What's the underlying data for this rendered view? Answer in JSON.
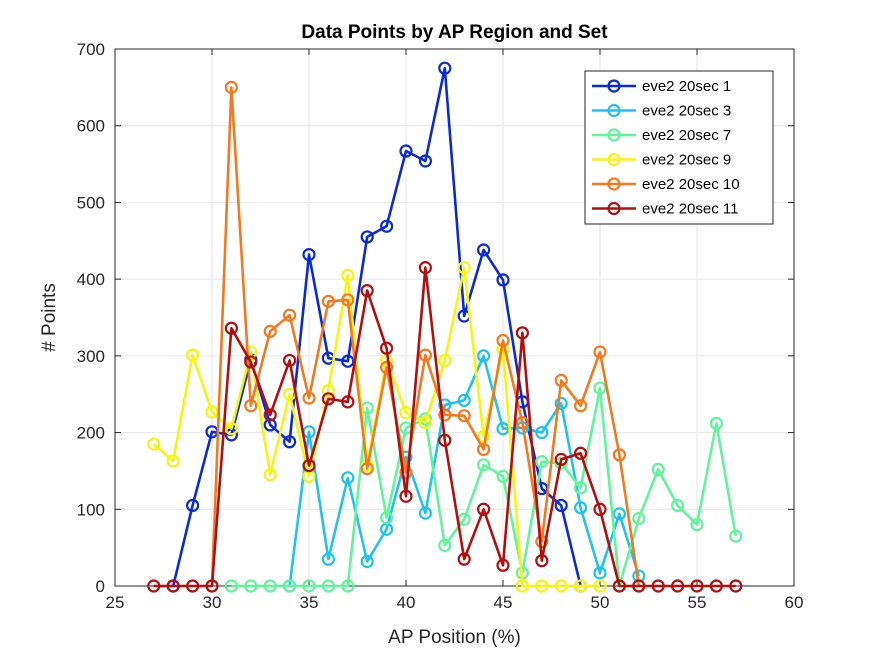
{
  "chart_data": {
    "type": "line",
    "title": "Data Points by AP Region and Set",
    "xlabel": "AP Position (%)",
    "ylabel": "# Points",
    "xlim": [
      25,
      60
    ],
    "ylim": [
      0,
      700
    ],
    "xticks": [
      25,
      30,
      35,
      40,
      45,
      50,
      55,
      60
    ],
    "yticks": [
      0,
      100,
      200,
      300,
      400,
      500,
      600,
      700
    ],
    "grid": true,
    "legend_position": "top-right",
    "marker": "circle",
    "series": [
      {
        "name": "eve2 20sec 1",
        "color": "#0a2bd4",
        "x": [
          28,
          29,
          30,
          31,
          32,
          33,
          34,
          35,
          36,
          37,
          38,
          39,
          40,
          41,
          42,
          43,
          44,
          45,
          46,
          47,
          48,
          49
        ],
        "y": [
          0,
          105,
          201,
          197,
          295,
          210,
          188,
          432,
          297,
          293,
          455,
          469,
          567,
          554,
          675,
          352,
          438,
          399,
          240,
          127,
          105,
          0
        ]
      },
      {
        "name": "eve2 20sec 3",
        "color": "#1ec3ef",
        "x": [
          34,
          35,
          36,
          37,
          38,
          39,
          40,
          41,
          42,
          43,
          44,
          45,
          46,
          47,
          48,
          49,
          50,
          51,
          52
        ],
        "y": [
          0,
          201,
          35,
          141,
          32,
          74,
          168,
          95,
          236,
          242,
          300,
          205,
          206,
          200,
          238,
          102,
          17,
          94,
          13
        ]
      },
      {
        "name": "eve2 20sec 7",
        "color": "#5ff598",
        "x": [
          31,
          32,
          33,
          34,
          35,
          36,
          37,
          38,
          39,
          40,
          41,
          42,
          43,
          44,
          45,
          46,
          47,
          48,
          49,
          50,
          51,
          52,
          53,
          54,
          55,
          56,
          57
        ],
        "y": [
          0,
          0,
          0,
          0,
          0,
          0,
          0,
          232,
          89,
          206,
          218,
          53,
          87,
          158,
          143,
          17,
          162,
          160,
          128,
          258,
          0,
          88,
          152,
          105,
          80,
          212,
          65
        ]
      },
      {
        "name": "eve2 20sec 9",
        "color": "#f5f511",
        "x": [
          27,
          28,
          29,
          30,
          31,
          32,
          33,
          34,
          35,
          36,
          37,
          38,
          39,
          40,
          41,
          42,
          43,
          44,
          45,
          46,
          47,
          48,
          49,
          50
        ],
        "y": [
          185,
          163,
          301,
          227,
          205,
          305,
          145,
          250,
          143,
          255,
          405,
          157,
          294,
          226,
          213,
          294,
          415,
          195,
          309,
          0,
          0,
          0,
          0,
          0
        ]
      },
      {
        "name": "eve2 20sec 10",
        "color": "#f5781e",
        "x": [
          30,
          31,
          32,
          33,
          34,
          35,
          36,
          37,
          38,
          39,
          40,
          41,
          42,
          43,
          44,
          45,
          46,
          47,
          48,
          49,
          50,
          51,
          52
        ],
        "y": [
          0,
          650,
          235,
          332,
          353,
          245,
          371,
          373,
          153,
          285,
          148,
          301,
          223,
          222,
          178,
          320,
          213,
          58,
          268,
          235,
          305,
          171,
          0
        ]
      },
      {
        "name": "eve2 20sec 11",
        "color": "#b30f0f",
        "x": [
          27,
          28,
          29,
          30,
          31,
          32,
          33,
          34,
          35,
          36,
          37,
          38,
          39,
          40,
          41,
          42,
          43,
          44,
          45,
          46,
          47,
          48,
          49,
          50,
          51,
          52,
          53,
          54,
          55,
          56,
          57
        ],
        "y": [
          0,
          0,
          0,
          0,
          336,
          292,
          223,
          294,
          157,
          244,
          240,
          385,
          310,
          117,
          415,
          190,
          35,
          100,
          27,
          330,
          33,
          165,
          173,
          100,
          0,
          0,
          0,
          0,
          0,
          0,
          0
        ]
      }
    ]
  }
}
